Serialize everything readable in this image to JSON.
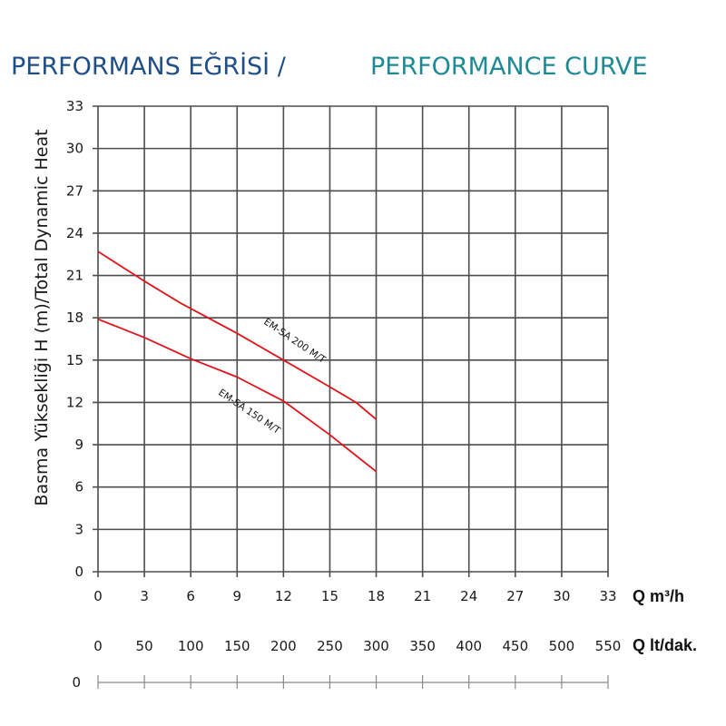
{
  "page": {
    "title_tr": "PERFORMANS EĞRİSİ /",
    "title_en": "PERFORMANCE CURVE"
  },
  "colors": {
    "title_tr": "#1f4f86",
    "title_en": "#1e8a96",
    "grid": "#4d4d4d",
    "curve": "#e0131b",
    "text": "#1a1a1a"
  },
  "chart_data": {
    "type": "line",
    "title": "PERFORMANS EĞRİSİ / PERFORMANCE CURVE",
    "ylabel": "Basma Yüksekliği H (m)/Total Dynamic Heat",
    "xlabel": "Q m³/h",
    "xlabel_secondary": "Q lt/dak.",
    "xlim": [
      0,
      33
    ],
    "ylim": [
      0,
      33
    ],
    "x_ticks": [
      0,
      3,
      6,
      9,
      12,
      15,
      18,
      21,
      24,
      27,
      30,
      33
    ],
    "y_ticks": [
      0,
      3,
      6,
      9,
      12,
      15,
      18,
      21,
      24,
      27,
      30,
      33
    ],
    "secondary_x_ticks": [
      0,
      50,
      100,
      150,
      200,
      250,
      300,
      350,
      400,
      450,
      500,
      550
    ],
    "secondary_axis_y_label": "0",
    "grid": true,
    "series": [
      {
        "name": "EM-SA 200 M/T",
        "x": [
          0,
          3,
          5.4,
          9,
          12,
          15,
          16.7,
          18
        ],
        "y": [
          22.7,
          20.6,
          19.0,
          16.9,
          15.0,
          13.1,
          12.0,
          10.8
        ]
      },
      {
        "name": "EM-SA 150 M/T",
        "x": [
          0,
          3,
          6,
          9,
          12,
          15,
          18
        ],
        "y": [
          17.9,
          16.6,
          15.1,
          13.8,
          12.1,
          9.7,
          7.1
        ]
      }
    ]
  }
}
